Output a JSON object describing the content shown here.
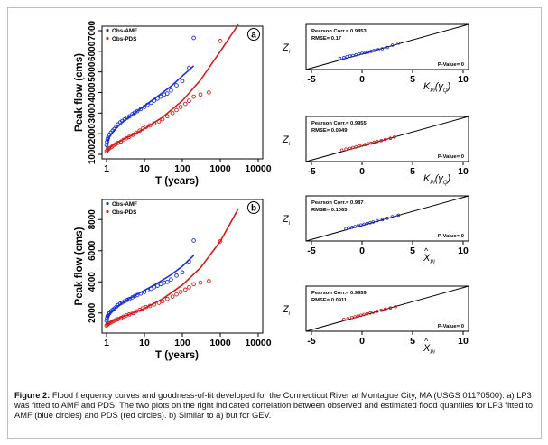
{
  "colors": {
    "amf": "#1a2fd8",
    "pds": "#d81a1a",
    "fit_line": "#000000"
  },
  "panels": [
    {
      "tag": "a",
      "legend": [
        "Obs-AMF",
        "Obs-PDS"
      ],
      "ylabel": "Peak flow (cms)",
      "xlabel": "T (years)",
      "chart_data": {
        "type": "scatter",
        "x_scale": "log",
        "xlim": [
          1,
          10000
        ],
        "ylim": [
          1000,
          7000
        ],
        "xticks": [
          "1",
          "10",
          "100",
          "1000",
          "10000"
        ],
        "yticks": [
          "1000",
          "2000",
          "3000",
          "4000",
          "5000",
          "6000",
          "7000"
        ],
        "series": [
          {
            "name": "Obs-AMF",
            "kind": "points",
            "color": "#1a2fd8",
            "x": [
              1.0,
              1.03,
              1.06,
              1.1,
              1.15,
              1.2,
              1.3,
              1.45,
              1.6,
              1.8,
              2.0,
              2.3,
              2.6,
              3.0,
              3.5,
              4.0,
              4.8,
              5.5,
              6.5,
              8.0,
              10,
              12,
              15,
              18,
              22,
              27,
              33,
              40,
              50,
              70,
              100,
              150,
              200
            ],
            "y": [
              1450,
              1600,
              1720,
              1800,
              1900,
              1950,
              2050,
              2150,
              2230,
              2350,
              2450,
              2550,
              2620,
              2700,
              2780,
              2850,
              2950,
              3020,
              3100,
              3200,
              3300,
              3400,
              3500,
              3600,
              3700,
              3800,
              3900,
              3950,
              4100,
              4350,
              4550,
              5200,
              6650
            ]
          },
          {
            "name": "LP3 fit (AMF)",
            "kind": "line",
            "color": "#1a2fd8",
            "x": [
              1.0,
              1.05,
              1.2,
              1.5,
              2,
              3,
              5,
              10,
              20,
              50,
              100,
              200
            ],
            "y": [
              1250,
              1600,
              1850,
              2100,
              2350,
              2650,
              2950,
              3350,
              3750,
              4300,
              4800,
              5300
            ]
          },
          {
            "name": "Obs-PDS",
            "kind": "points",
            "color": "#d81a1a",
            "x": [
              1.0,
              1.05,
              1.1,
              1.2,
              1.35,
              1.5,
              1.7,
              2.0,
              2.4,
              2.8,
              3.3,
              4.0,
              5.0,
              6.0,
              7.5,
              9.0,
              11,
              14,
              18,
              24,
              30,
              40,
              55,
              70,
              90,
              120,
              150,
              200,
              300,
              500,
              1000
            ],
            "y": [
              1150,
              1200,
              1250,
              1300,
              1350,
              1420,
              1480,
              1550,
              1620,
              1700,
              1780,
              1850,
              1950,
              2050,
              2150,
              2250,
              2330,
              2400,
              2500,
              2600,
              2700,
              2850,
              3000,
              3150,
              3300,
              3450,
              3600,
              3800,
              3900,
              4000,
              6500
            ]
          },
          {
            "name": "LP3 fit (PDS)",
            "kind": "line",
            "color": "#d81a1a",
            "x": [
              1.0,
              1.2,
              1.5,
              2,
              3,
              5,
              10,
              30,
              100,
              300,
              1000,
              3000
            ],
            "y": [
              1100,
              1300,
              1450,
              1580,
              1750,
              1950,
              2250,
              2800,
              3600,
              4600,
              6000,
              7300
            ]
          }
        ]
      }
    },
    {
      "tag": "b",
      "legend": [
        "Obs-AMF",
        "Obs-PDS"
      ],
      "ylabel": "Peak flow (cms)",
      "xlabel": "T (years)",
      "chart_data": {
        "type": "scatter",
        "x_scale": "log",
        "xlim": [
          1,
          10000
        ],
        "ylim": [
          1000,
          9000
        ],
        "xticks": [
          "1",
          "10",
          "100",
          "1000",
          "10000"
        ],
        "yticks": [
          "2000",
          "4000",
          "6000",
          "8000"
        ],
        "series": [
          {
            "name": "Obs-AMF",
            "kind": "points",
            "color": "#1a2fd8",
            "x": [
              1.0,
              1.03,
              1.06,
              1.1,
              1.15,
              1.2,
              1.3,
              1.45,
              1.6,
              1.8,
              2.0,
              2.3,
              2.6,
              3.0,
              3.5,
              4.0,
              4.8,
              5.5,
              6.5,
              8.0,
              10,
              12,
              15,
              18,
              22,
              27,
              33,
              40,
              50,
              70,
              100,
              150,
              200
            ],
            "y": [
              1500,
              1650,
              1780,
              1850,
              1950,
              2000,
              2100,
              2200,
              2280,
              2400,
              2500,
              2600,
              2670,
              2750,
              2830,
              2900,
              3000,
              3080,
              3150,
              3250,
              3350,
              3450,
              3550,
              3650,
              3750,
              3850,
              3950,
              4000,
              4150,
              4400,
              4600,
              5300,
              6650
            ]
          },
          {
            "name": "GEV fit (AMF)",
            "kind": "line",
            "color": "#1a2fd8",
            "x": [
              1.0,
              1.05,
              1.2,
              1.5,
              2,
              3,
              5,
              10,
              20,
              50,
              100,
              200
            ],
            "y": [
              1300,
              1700,
              1950,
              2200,
              2450,
              2750,
              3050,
              3450,
              3850,
              4450,
              5000,
              5700
            ]
          },
          {
            "name": "Obs-PDS",
            "kind": "points",
            "color": "#d81a1a",
            "x": [
              1.0,
              1.05,
              1.1,
              1.2,
              1.35,
              1.5,
              1.7,
              2.0,
              2.4,
              2.8,
              3.3,
              4.0,
              5.0,
              6.0,
              7.5,
              9.0,
              11,
              14,
              18,
              24,
              30,
              40,
              55,
              70,
              90,
              120,
              150,
              200,
              300,
              500,
              1000
            ],
            "y": [
              1200,
              1250,
              1300,
              1350,
              1400,
              1470,
              1530,
              1600,
              1680,
              1760,
              1840,
              1910,
              2000,
              2100,
              2200,
              2300,
              2380,
              2450,
              2550,
              2650,
              2750,
              2900,
              3050,
              3200,
              3350,
              3500,
              3650,
              3850,
              3950,
              4050,
              6600
            ]
          },
          {
            "name": "GEV fit (PDS)",
            "kind": "line",
            "color": "#d81a1a",
            "x": [
              1.0,
              1.2,
              1.5,
              2,
              3,
              5,
              10,
              30,
              100,
              300,
              1000,
              3000
            ],
            "y": [
              1150,
              1350,
              1500,
              1630,
              1800,
              2000,
              2300,
              2900,
              3800,
              4900,
              6600,
              8700
            ]
          }
        ]
      }
    }
  ],
  "gof": [
    {
      "pearson": "Pearson Corr.= 0.9853",
      "rmse": "RMSE= 0.17",
      "pvalue": "P-Value= 0",
      "color": "#1a2fd8",
      "ylabel": "Z",
      "ysub": "i",
      "xlabel": "K",
      "xsub": "Pi",
      "xarg": "γ",
      "xargsub": "Q",
      "chart_data": {
        "type": "scatter",
        "xlim": [
          -5,
          10
        ],
        "ylim": [
          -5,
          10
        ],
        "xticks": [
          "-5",
          "0",
          "5",
          "10"
        ],
        "x": [
          -2.2,
          -1.8,
          -1.5,
          -1.2,
          -0.9,
          -0.6,
          -0.3,
          0.0,
          0.3,
          0.6,
          0.9,
          1.2,
          1.6,
          2.0,
          2.5,
          3.0,
          3.6
        ],
        "y": [
          -2.0,
          -1.7,
          -1.4,
          -1.1,
          -0.9,
          -0.6,
          -0.3,
          0.0,
          0.25,
          0.5,
          0.8,
          1.1,
          1.4,
          1.8,
          2.3,
          3.2,
          4.0
        ]
      }
    },
    {
      "pearson": "Pearson Corr.= 0.9955",
      "rmse": "RMSE= 0.0949",
      "pvalue": "P-Value= 0",
      "color": "#d81a1a",
      "ylabel": "Z",
      "ysub": "i",
      "xlabel": "K",
      "xsub": "Pi",
      "xarg": "γ",
      "xargsub": "Q",
      "chart_data": {
        "type": "scatter",
        "xlim": [
          -5,
          10
        ],
        "ylim": [
          -5,
          10
        ],
        "xticks": [
          "-5",
          "0",
          "5",
          "10"
        ],
        "x": [
          -2.0,
          -1.6,
          -1.2,
          -0.9,
          -0.6,
          -0.3,
          0.0,
          0.3,
          0.6,
          0.9,
          1.2,
          1.5,
          1.9,
          2.3,
          2.8,
          3.2
        ],
        "y": [
          -1.9,
          -1.5,
          -1.2,
          -0.9,
          -0.6,
          -0.3,
          0.0,
          0.3,
          0.6,
          0.85,
          1.2,
          1.5,
          1.9,
          2.3,
          2.8,
          3.3
        ]
      }
    },
    {
      "pearson": "Pearson Corr.= 0.987",
      "rmse": "RMSE= 0.1065",
      "pvalue": "P-Value= 0",
      "color": "#1a2fd8",
      "ylabel": "Z",
      "ysub": "i",
      "xlabel": "X",
      "xsub": "Pi",
      "xarg": "",
      "xargsub": "",
      "chart_data": {
        "type": "scatter",
        "xlim": [
          -5,
          10
        ],
        "ylim": [
          -5,
          10
        ],
        "xticks": [
          "-5",
          "0",
          "5",
          "10"
        ],
        "x": [
          -1.6,
          -1.3,
          -1.0,
          -0.7,
          -0.4,
          -0.1,
          0.2,
          0.5,
          0.8,
          1.1,
          1.5,
          2.0,
          2.5,
          3.0,
          3.6
        ],
        "y": [
          -1.5,
          -1.2,
          -1.0,
          -0.7,
          -0.4,
          -0.1,
          0.2,
          0.5,
          0.8,
          1.1,
          1.6,
          2.0,
          2.6,
          3.2,
          3.8
        ]
      }
    },
    {
      "pearson": "Pearson Corr.= 0.9959",
      "rmse": "RMSE= 0.0911",
      "pvalue": "P-Value= 0",
      "color": "#d81a1a",
      "ylabel": "Z",
      "ysub": "i",
      "xlabel": "X",
      "xsub": "Pi",
      "xarg": "",
      "xargsub": "",
      "chart_data": {
        "type": "scatter",
        "xlim": [
          -5,
          10
        ],
        "ylim": [
          -5,
          10
        ],
        "xticks": [
          "-5",
          "0",
          "5",
          "10"
        ],
        "x": [
          -1.8,
          -1.4,
          -1.0,
          -0.7,
          -0.4,
          -0.1,
          0.2,
          0.5,
          0.8,
          1.1,
          1.5,
          1.9,
          2.3,
          2.8,
          3.3
        ],
        "y": [
          -1.7,
          -1.4,
          -1.0,
          -0.7,
          -0.4,
          -0.1,
          0.2,
          0.5,
          0.8,
          1.1,
          1.5,
          1.9,
          2.3,
          2.8,
          3.3
        ]
      }
    }
  ],
  "caption": {
    "label": "Figure 2:",
    "text": " Flood frequency curves and goodness-of-fit developed for the Connecticut River at Montague City, MA (USGS 01170500): a) LP3 was fitted to AMF and PDS. The two plots on the right indicated correlation between observed and estimated flood quantiles for LP3 fitted to AMF (blue circles) and PDS (red circles). b) Similar to a) but for GEV."
  }
}
